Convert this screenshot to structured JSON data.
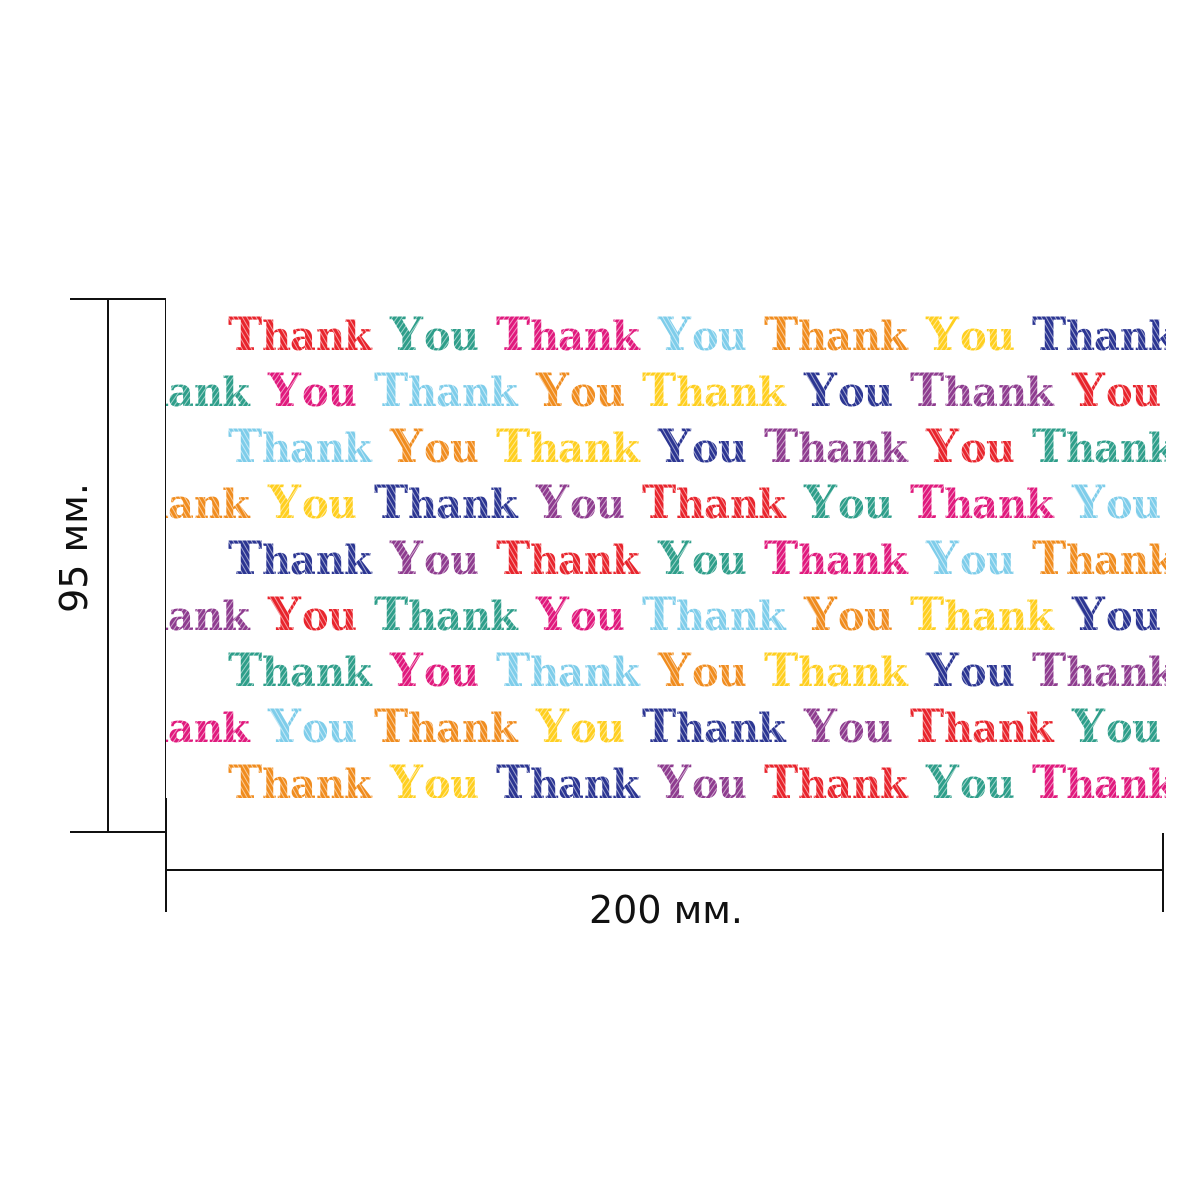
{
  "dimensions": {
    "width_label": "200 мм.",
    "height_label": "95 мм."
  },
  "pattern": {
    "words": [
      "Thank",
      "You"
    ],
    "palette": [
      "#e8242c",
      "#2e9e8a",
      "#f08c1e",
      "#ffcf1f",
      "#2b3592",
      "#e0197d",
      "#7ecdea",
      "#8e3c8f"
    ]
  }
}
